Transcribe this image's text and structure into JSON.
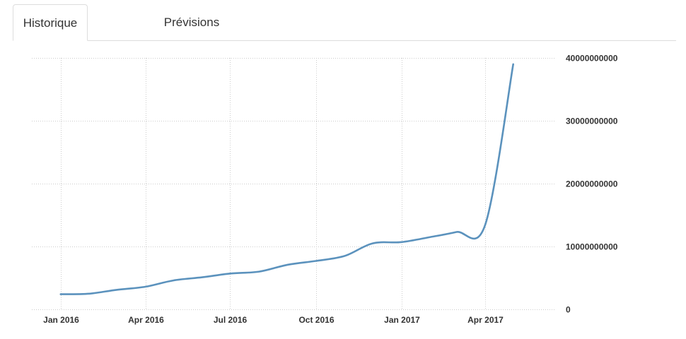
{
  "tabs": [
    {
      "label": "Historique",
      "active": true
    },
    {
      "label": "Prévisions",
      "active": false
    }
  ],
  "chart_data": {
    "type": "line",
    "title": "",
    "xlabel": "",
    "ylabel": "",
    "grid": true,
    "y_axis_side": "right",
    "ylim": [
      0,
      40000000000
    ],
    "y_ticks": [
      {
        "value": 0,
        "label": "0"
      },
      {
        "value": 10000000000,
        "label": "10000000000"
      },
      {
        "value": 20000000000,
        "label": "20000000000"
      },
      {
        "value": 30000000000,
        "label": "30000000000"
      },
      {
        "value": 40000000000,
        "label": "40000000000"
      }
    ],
    "x_ticks": [
      {
        "date": "2016-01-01",
        "label": "Jan 2016"
      },
      {
        "date": "2016-04-01",
        "label": "Apr 2016"
      },
      {
        "date": "2016-07-01",
        "label": "Jul 2016"
      },
      {
        "date": "2016-10-01",
        "label": "Oct 2016"
      },
      {
        "date": "2017-01-01",
        "label": "Jan 2017"
      },
      {
        "date": "2017-04-01",
        "label": "Apr 2017"
      }
    ],
    "xlim": [
      "2015-12-01",
      "2017-06-15"
    ],
    "series": [
      {
        "color": "#5b92bd",
        "points": [
          {
            "x": "2016-01-01",
            "y": 2400000000
          },
          {
            "x": "2016-02-01",
            "y": 2500000000
          },
          {
            "x": "2016-03-01",
            "y": 3100000000
          },
          {
            "x": "2016-04-01",
            "y": 3600000000
          },
          {
            "x": "2016-05-01",
            "y": 4600000000
          },
          {
            "x": "2016-06-01",
            "y": 5100000000
          },
          {
            "x": "2016-07-01",
            "y": 5700000000
          },
          {
            "x": "2016-08-01",
            "y": 6000000000
          },
          {
            "x": "2016-09-01",
            "y": 7100000000
          },
          {
            "x": "2016-10-01",
            "y": 7700000000
          },
          {
            "x": "2016-11-01",
            "y": 8500000000
          },
          {
            "x": "2016-12-01",
            "y": 10500000000
          },
          {
            "x": "2017-01-01",
            "y": 10700000000
          },
          {
            "x": "2017-02-01",
            "y": 11500000000
          },
          {
            "x": "2017-03-01",
            "y": 12300000000
          },
          {
            "x": "2017-04-01",
            "y": 13500000000
          },
          {
            "x": "2017-05-01",
            "y": 39000000000
          }
        ]
      }
    ]
  }
}
